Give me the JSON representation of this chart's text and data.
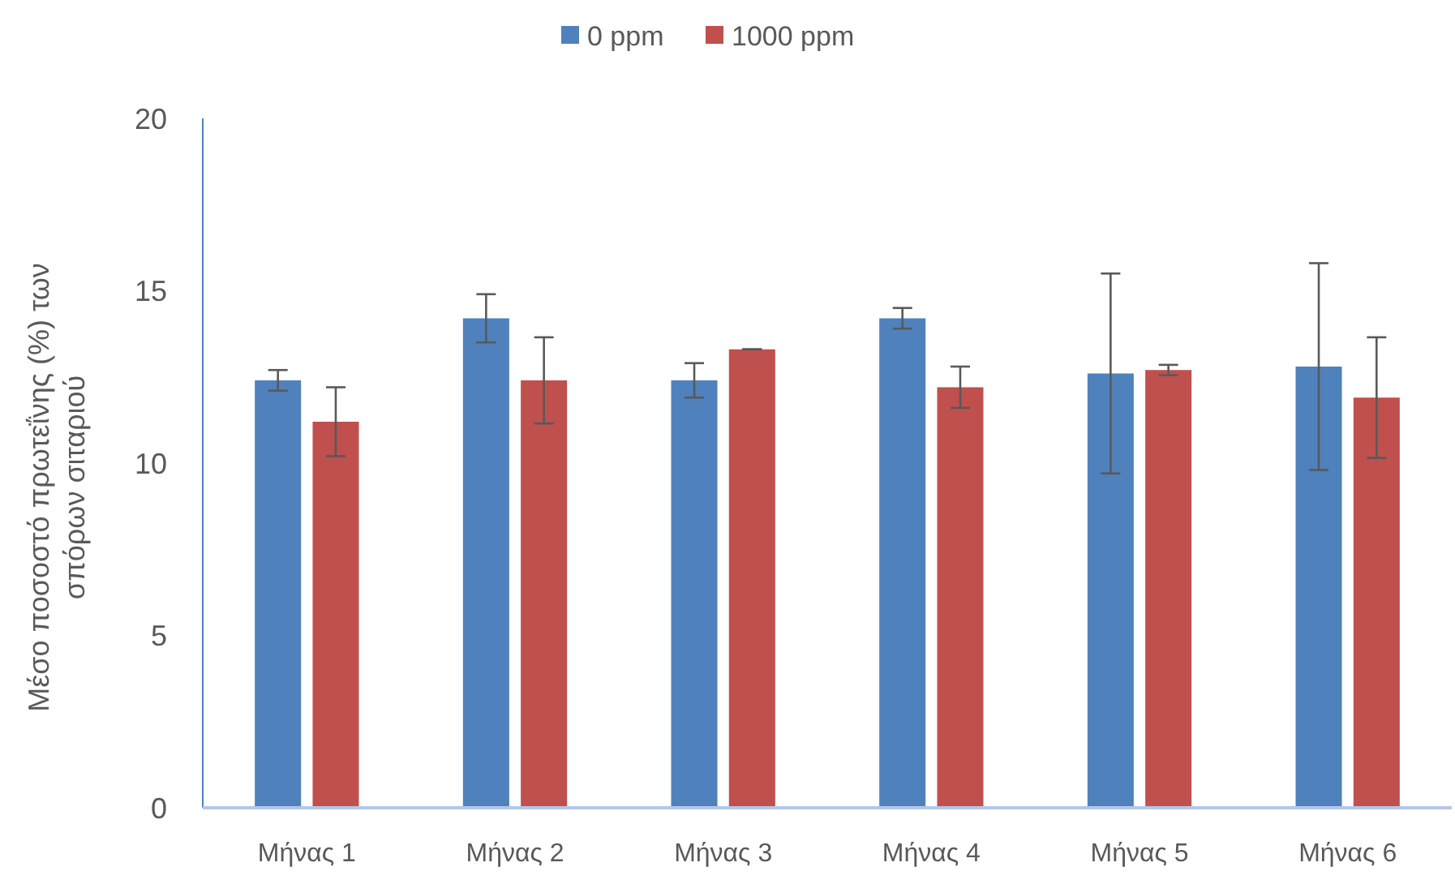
{
  "chart_data": {
    "type": "bar",
    "ylabel": "Μέσο ποσοστό πρωτεΐνης (%) των σπόρων σιταριού",
    "categories": [
      "Μήνας 1",
      "Μήνας 2",
      "Μήνας 3",
      "Μήνας 4",
      "Μήνας 5",
      "Μήνας 6"
    ],
    "series": [
      {
        "name": "0 ppm",
        "color": "#4f81bd",
        "values": [
          12.4,
          14.2,
          12.4,
          14.2,
          12.6,
          12.8
        ],
        "errors": [
          0.3,
          0.7,
          0.5,
          0.3,
          2.9,
          3.0
        ]
      },
      {
        "name": "1000 ppm",
        "color": "#c0504d",
        "values": [
          11.2,
          12.4,
          13.3,
          12.2,
          12.7,
          11.9
        ],
        "errors": [
          1.0,
          1.25,
          0,
          0.6,
          0.15,
          1.75
        ]
      }
    ],
    "ylim": [
      0,
      20
    ],
    "yticks": [
      0,
      5,
      10,
      15,
      20
    ],
    "grid": false,
    "legend": "top"
  }
}
